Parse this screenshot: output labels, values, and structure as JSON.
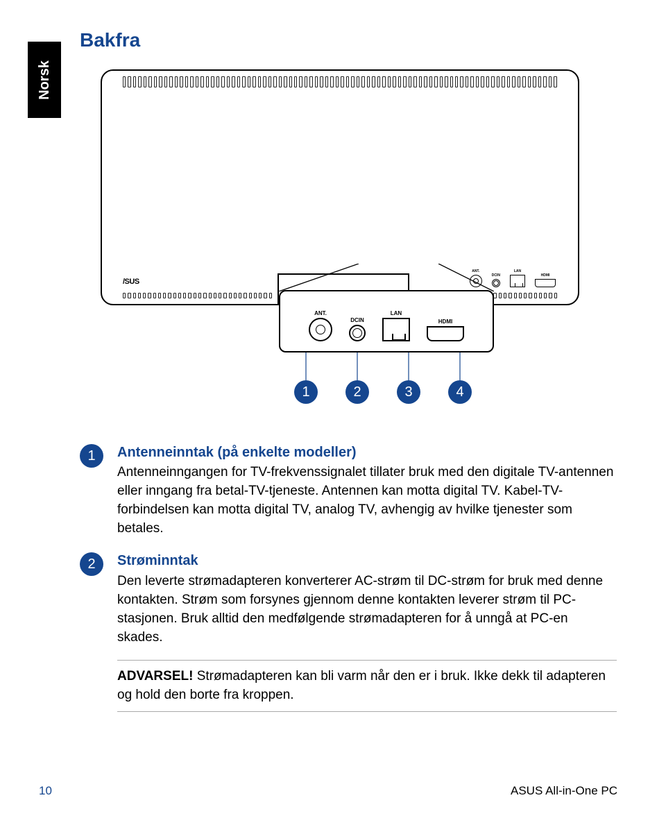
{
  "colors": {
    "accent": "#15468f",
    "text": "#000000",
    "bg": "#ffffff",
    "rule": "#aaaaaa"
  },
  "sidebar_label": "Norsk",
  "title": "Bakfra",
  "logo": "/SUS",
  "ports": {
    "ant": {
      "label": "ANT."
    },
    "dcin": {
      "label": "DCIN"
    },
    "lan": {
      "label": "LAN"
    },
    "hdmi": {
      "label": "HDMI"
    }
  },
  "callouts": [
    "1",
    "2",
    "3",
    "4"
  ],
  "items": [
    {
      "num": "1",
      "title": "Antenneinntak (på enkelte modeller)",
      "body": "Antenneinngangen for TV-frekvenssignalet tillater bruk med den digitale TV-antennen eller inngang fra betal-TV-tjeneste. Antennen kan motta digital TV. Kabel-TV-forbindelsen kan motta digital TV, analog TV, avhengig av hvilke tjenester som betales."
    },
    {
      "num": "2",
      "title": "Strøminntak",
      "body": "Den leverte strømadapteren konverterer AC-strøm til DC-strøm for bruk med denne kontakten. Strøm som forsynes gjennom denne kontakten leverer strøm til PC-stasjonen. Bruk alltid den medfølgende strømadapteren for å unngå at PC-en skades."
    }
  ],
  "warning": {
    "label": "ADVARSEL!",
    "text": " Strømadapteren kan bli varm når den er i bruk. Ikke dekk til adapteren og hold den borte fra kroppen."
  },
  "footer": {
    "page": "10",
    "book": "ASUS All-in-One PC"
  }
}
